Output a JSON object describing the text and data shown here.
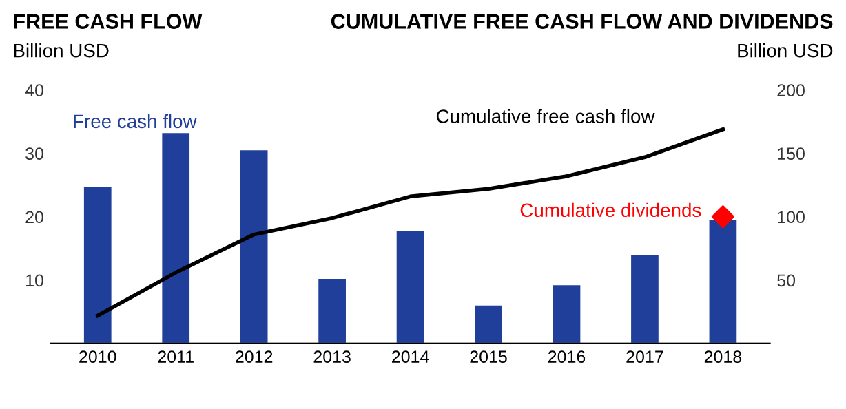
{
  "chart_data": {
    "type": "bar",
    "title": "FREE CASH FLOW",
    "ylabel": "Billion USD",
    "y2label": "Billion USD",
    "annotations": [
      "CUMULATIVE FREE CASH FLOW AND DIVIDENDS"
    ],
    "categories": [
      "2010",
      "2011",
      "2012",
      "2013",
      "2014",
      "2015",
      "2016",
      "2017",
      "2018"
    ],
    "series": [
      {
        "name": "Free cash flow",
        "color": "#1f3f9a",
        "values": [
          24.7,
          33.2,
          30.5,
          10.2,
          17.7,
          6,
          9.2,
          14,
          19.5
        ]
      },
      {
        "name": "Cumulative free cash flow",
        "type": "line",
        "axis": "y2",
        "color": "#000000",
        "values": [
          22,
          56,
          86,
          99,
          116,
          122,
          132,
          147,
          169
        ]
      },
      {
        "name": "Cumulative dividends",
        "type": "scatter",
        "axis": "y2",
        "color": "#ff0000",
        "marker": "diamond",
        "values": [
          null,
          null,
          null,
          null,
          null,
          null,
          null,
          null,
          100
        ]
      }
    ],
    "ylim": [
      0,
      40
    ],
    "yticks": [
      10,
      20,
      30,
      40
    ],
    "y2lim": [
      0,
      200
    ],
    "y2ticks": [
      50,
      100,
      150,
      200
    ],
    "grid": false,
    "legend": false
  }
}
